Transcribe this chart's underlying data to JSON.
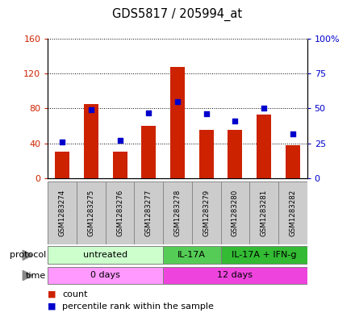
{
  "title": "GDS5817 / 205994_at",
  "samples": [
    "GSM1283274",
    "GSM1283275",
    "GSM1283276",
    "GSM1283277",
    "GSM1283278",
    "GSM1283279",
    "GSM1283280",
    "GSM1283281",
    "GSM1283282"
  ],
  "counts": [
    30,
    85,
    30,
    60,
    128,
    55,
    55,
    73,
    38
  ],
  "percentiles": [
    26,
    49,
    27,
    47,
    55,
    46,
    41,
    50,
    32
  ],
  "ylim_left": [
    0,
    160
  ],
  "ylim_right": [
    0,
    100
  ],
  "yticks_left": [
    0,
    40,
    80,
    120,
    160
  ],
  "yticks_left_labels": [
    "0",
    "40",
    "80",
    "120",
    "160"
  ],
  "yticks_right": [
    0,
    25,
    50,
    75,
    100
  ],
  "yticks_right_labels": [
    "0",
    "25",
    "50",
    "75",
    "100%"
  ],
  "bar_color": "#cc2200",
  "dot_color": "#0000cc",
  "protocol_groups": [
    {
      "label": "untreated",
      "start": 0,
      "end": 4,
      "color": "#ccffcc"
    },
    {
      "label": "IL-17A",
      "start": 4,
      "end": 6,
      "color": "#55cc55"
    },
    {
      "label": "IL-17A + IFN-g",
      "start": 6,
      "end": 9,
      "color": "#33bb33"
    }
  ],
  "time_groups": [
    {
      "label": "0 days",
      "start": 0,
      "end": 4,
      "color": "#ff99ff"
    },
    {
      "label": "12 days",
      "start": 4,
      "end": 9,
      "color": "#ee44dd"
    }
  ],
  "protocol_label": "protocol",
  "time_label": "time",
  "legend_count_label": "count",
  "legend_pct_label": "percentile rank within the sample",
  "bar_color_legend": "#cc2200",
  "dot_color_legend": "#0000cc",
  "bar_width": 0.5,
  "axis_label_color_left": "#cc2200",
  "axis_label_color_right": "#0000cc",
  "sample_box_color": "#cccccc",
  "sample_box_edge": "#888888"
}
